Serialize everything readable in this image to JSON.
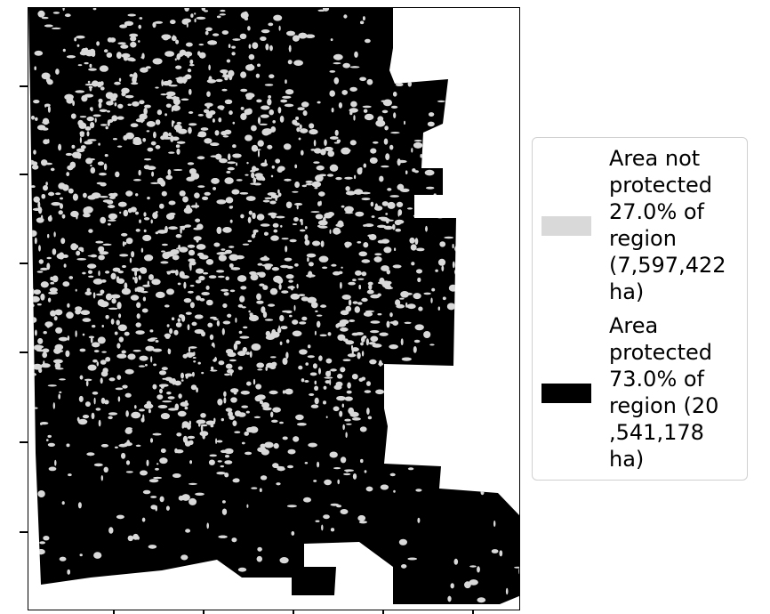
{
  "legend": {
    "entries": [
      {
        "label": "Area not\nprotected\n27.0% of\nregion\n(7,597,422\nha)",
        "color": "#d9d9d9"
      },
      {
        "label": "Area\nprotected\n73.0% of\nregion (20\n,541,178\nha)",
        "color": "#000000"
      }
    ]
  },
  "colors": {
    "protected": "#000000",
    "not_protected": "#d9d9d9",
    "outside_region": "#ffffff"
  }
}
